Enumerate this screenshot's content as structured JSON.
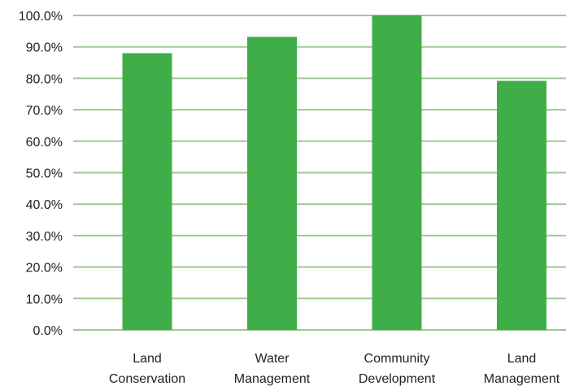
{
  "chart_data": {
    "type": "bar",
    "categories": [
      [
        "Land",
        "Conservation"
      ],
      [
        "Water",
        "Management"
      ],
      [
        "Community",
        "Development"
      ],
      [
        "Land",
        "Management"
      ]
    ],
    "values": [
      88.0,
      93.2,
      100.0,
      79.2
    ],
    "ylim": [
      0,
      100
    ],
    "yticks": [
      "0.0%",
      "10.0%",
      "20.0%",
      "30.0%",
      "40.0%",
      "50.0%",
      "60.0%",
      "70.0%",
      "80.0%",
      "90.0%",
      "100.0%"
    ],
    "grid": true,
    "colors": {
      "bar": "#3fae49",
      "grid": "#9ccb8f"
    }
  }
}
